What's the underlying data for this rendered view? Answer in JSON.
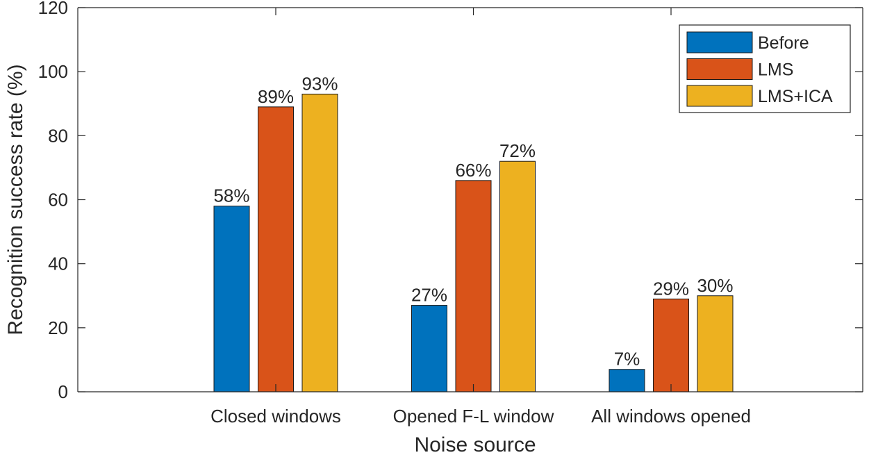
{
  "chart_data": {
    "type": "bar",
    "title": "",
    "xlabel": "Noise source",
    "ylabel": "Recognition success rate (%)",
    "categories": [
      "Closed windows",
      "Opened F-L window",
      "All windows opened"
    ],
    "series": [
      {
        "name": "Before",
        "values": [
          58,
          27,
          7
        ],
        "color": "#0072BD"
      },
      {
        "name": "LMS",
        "values": [
          89,
          66,
          29
        ],
        "color": "#D95319"
      },
      {
        "name": "LMS+ICA",
        "values": [
          93,
          72,
          30
        ],
        "color": "#EDB120"
      }
    ],
    "value_labels": [
      [
        "58%",
        "27%",
        "7%"
      ],
      [
        "89%",
        "66%",
        "29%"
      ],
      [
        "93%",
        "72%",
        "30%"
      ]
    ],
    "ylim": [
      0,
      120
    ],
    "yticks": [
      0,
      20,
      40,
      60,
      80,
      100,
      120
    ],
    "grid": false,
    "legend_position": "top-right"
  }
}
